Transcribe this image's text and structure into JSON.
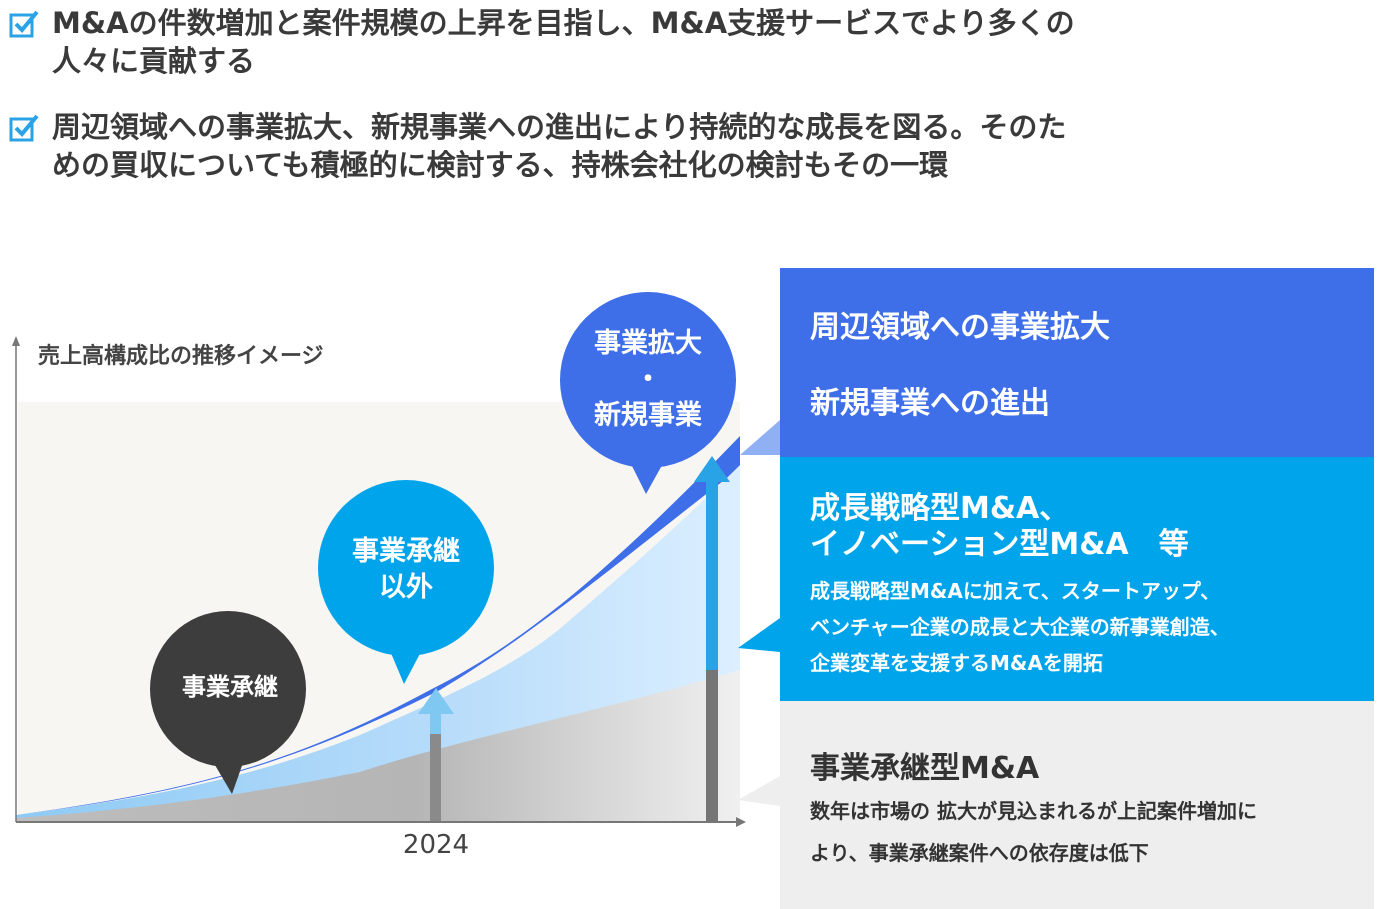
{
  "bullets": [
    {
      "line1": "M&Aの件数増加と案件規模の上昇を目指し、M&A支援サービスでより多くの",
      "line2": "人々に貢献する"
    },
    {
      "line1": "周辺領域への事業拡大、新規事業への進出により持続的な成長を図る。そのた",
      "line2": "めの買収についても積極的に検討する、持株会社化の検討もその一環"
    }
  ],
  "chart": {
    "title": "売上高構成比の推移イメージ",
    "x_tick": "2024",
    "bubbles": [
      {
        "label": "事業承継",
        "color": "#3d3d3d"
      },
      {
        "label1": "事業承継",
        "label2": "以外",
        "color": "#00a4ea"
      },
      {
        "label1": "事業拡大",
        "label2": "・",
        "label3": "新規事業",
        "color": "#3f6ee9"
      }
    ],
    "colors": {
      "succession": "#b9b9b9",
      "other": "#a8d4f8",
      "expansion": "#3f6ee9"
    }
  },
  "panels": {
    "expansion": {
      "line1": "周辺領域への事業拡大",
      "line2": "新規事業への進出"
    },
    "growth": {
      "heading1": "成長戦略型M&A、",
      "heading2": "イノベーション型M&A　等",
      "desc1": "成長戦略型M&Aに加えて、スタートアップ、",
      "desc2": "ベンチャー企業の成長と大企業の新事業創造、",
      "desc3": "企業変革を支援するM&Aを開拓"
    },
    "succession": {
      "heading": "事業承継型M&A",
      "desc1": "数年は市場の 拡大が見込まれるが上記案件増加に",
      "desc2": "より、事業承継案件への依存度は低下"
    }
  }
}
